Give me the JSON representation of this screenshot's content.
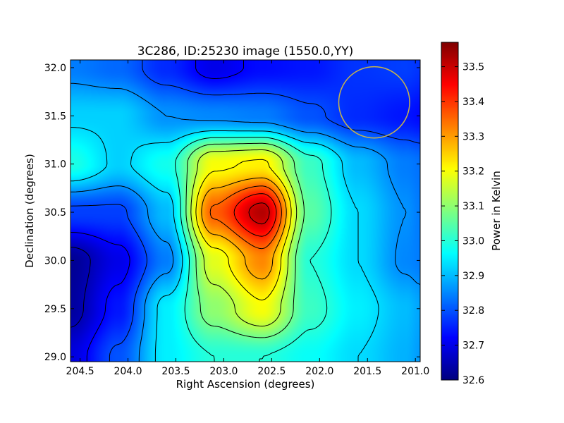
{
  "chart_data": {
    "type": "heatmap",
    "title": "3C286, ID:25230 image (1550.0,YY)",
    "xlabel": "Right Ascension (degrees)",
    "ylabel": "Declination (degrees)",
    "colorbar_label": "Power in Kelvin",
    "colormap": "jet",
    "xlim": [
      204.6,
      200.95
    ],
    "ylim": [
      28.95,
      32.08
    ],
    "clim": [
      32.6,
      33.57
    ],
    "x_ticks": [
      {
        "value": 204.5,
        "label": "204.5"
      },
      {
        "value": 204.0,
        "label": "204.0"
      },
      {
        "value": 203.5,
        "label": "203.5"
      },
      {
        "value": 203.0,
        "label": "203.0"
      },
      {
        "value": 202.5,
        "label": "202.5"
      },
      {
        "value": 202.0,
        "label": "202.0"
      },
      {
        "value": 201.5,
        "label": "201.5"
      },
      {
        "value": 201.0,
        "label": "201.0"
      }
    ],
    "y_ticks": [
      {
        "value": 29.0,
        "label": "29.0"
      },
      {
        "value": 29.5,
        "label": "29.5"
      },
      {
        "value": 30.0,
        "label": "30.0"
      },
      {
        "value": 30.5,
        "label": "30.5"
      },
      {
        "value": 31.0,
        "label": "31.0"
      },
      {
        "value": 31.5,
        "label": "31.5"
      },
      {
        "value": 32.0,
        "label": "32.0"
      }
    ],
    "colorbar_ticks": [
      {
        "value": 32.6,
        "label": "32.6"
      },
      {
        "value": 32.7,
        "label": "32.7"
      },
      {
        "value": 32.8,
        "label": "32.8"
      },
      {
        "value": 32.9,
        "label": "32.9"
      },
      {
        "value": 33.0,
        "label": "33.0"
      },
      {
        "value": 33.1,
        "label": "33.1"
      },
      {
        "value": 33.2,
        "label": "33.2"
      },
      {
        "value": 33.3,
        "label": "33.3"
      },
      {
        "value": 33.4,
        "label": "33.4"
      },
      {
        "value": 33.5,
        "label": "33.5"
      }
    ],
    "field": {
      "x": [
        204.6,
        204.1,
        203.6,
        203.1,
        202.6,
        202.1,
        201.6,
        201.1,
        200.95
      ],
      "y": [
        29.0,
        29.5,
        30.0,
        30.5,
        31.0,
        31.5,
        32.0
      ],
      "values": [
        [
          32.69,
          32.8,
          32.95,
          33.0,
          33.0,
          32.97,
          32.93,
          32.89,
          32.87
        ],
        [
          32.63,
          32.74,
          32.95,
          33.1,
          33.2,
          33.02,
          32.95,
          32.9,
          32.88
        ],
        [
          32.62,
          32.7,
          32.84,
          33.18,
          33.32,
          33.0,
          32.93,
          32.85,
          32.84
        ],
        [
          32.78,
          32.78,
          32.9,
          33.36,
          33.52,
          33.05,
          32.93,
          32.86,
          32.84
        ],
        [
          32.99,
          32.92,
          32.98,
          33.2,
          33.22,
          33.02,
          32.9,
          32.84,
          32.83
        ],
        [
          32.92,
          32.92,
          32.86,
          32.85,
          32.84,
          32.8,
          32.76,
          32.74,
          32.73
        ],
        [
          32.84,
          32.82,
          32.76,
          32.7,
          32.73,
          32.74,
          32.77,
          32.78,
          32.77
        ]
      ]
    },
    "contour_levels": [
      32.65,
      32.72,
      32.79,
      32.86,
      32.93,
      33.0,
      33.07,
      33.14,
      33.21,
      33.28,
      33.35,
      33.42,
      33.49
    ],
    "beam_circle": {
      "ra": 201.43,
      "dec": 31.64,
      "radius_deg": 0.37,
      "color": "#c8b44a"
    }
  }
}
